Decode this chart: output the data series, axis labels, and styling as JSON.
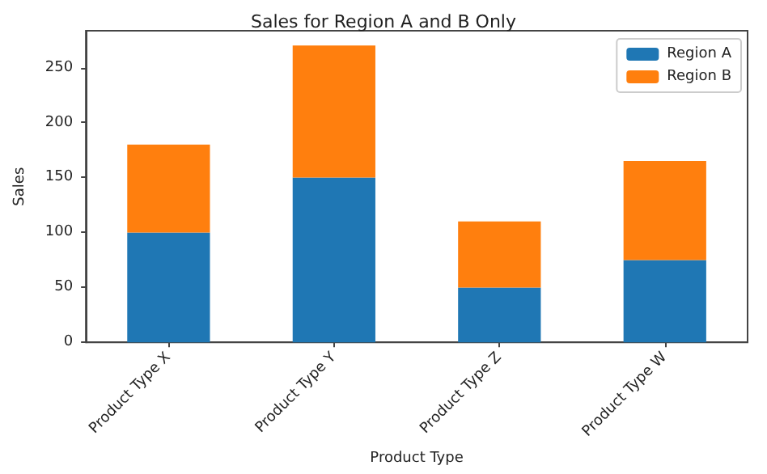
{
  "chart_data": {
    "type": "bar",
    "title": "Sales for Region A and B Only",
    "xlabel": "Product Type",
    "ylabel": "Sales",
    "categories": [
      "Product Type X",
      "Product Type Y",
      "Product Type Z",
      "Product Type W"
    ],
    "series": [
      {
        "name": "Region A",
        "color": "#1f77b4",
        "values": [
          100,
          150,
          50,
          75
        ]
      },
      {
        "name": "Region B",
        "color": "#ff7f0e",
        "values": [
          80,
          120,
          60,
          90
        ]
      }
    ],
    "stacked": true,
    "ylim": [
      0,
      283.5
    ],
    "yticks": [
      0,
      50,
      100,
      150,
      200,
      250
    ],
    "grid": false,
    "legend": "top right"
  }
}
